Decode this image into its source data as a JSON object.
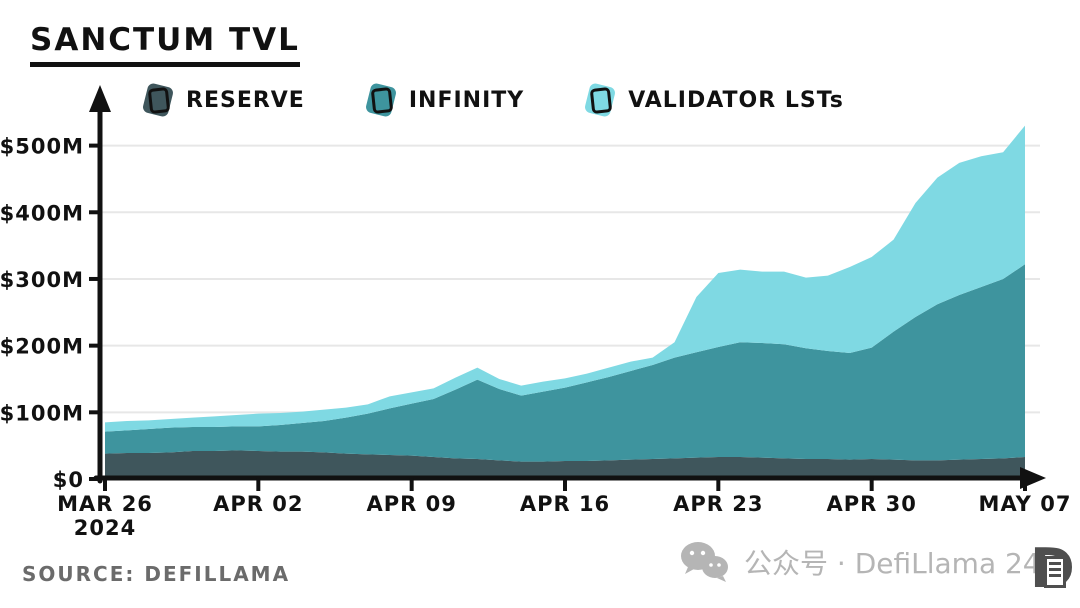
{
  "title": "SANCTUM TVL",
  "source": "SOURCE: DEFILLAMA",
  "watermark": {
    "icon": "wechat-icon",
    "text": "公众号 · DefiLlama 24",
    "seal_letter": "D"
  },
  "chart_data": {
    "type": "area",
    "stacked": true,
    "title": "SANCTUM TVL",
    "xlabel": "",
    "ylabel": "",
    "ylim": [
      0,
      500
    ],
    "grid": true,
    "legend_position": "top",
    "y_ticks": [
      0,
      100,
      200,
      300,
      400,
      500
    ],
    "y_tick_labels": [
      "$0",
      "$100M",
      "$200M",
      "$300M",
      "$400M",
      "$500M"
    ],
    "x_ticks": [
      {
        "index": 0,
        "label": "MAR 26",
        "sublabel": "2024"
      },
      {
        "index": 7,
        "label": "APR 02"
      },
      {
        "index": 14,
        "label": "APR 09"
      },
      {
        "index": 21,
        "label": "APR 16"
      },
      {
        "index": 28,
        "label": "APR 23"
      },
      {
        "index": 35,
        "label": "APR 30"
      },
      {
        "index": 42,
        "label": "MAY 07"
      }
    ],
    "dates": [
      "2024-03-26",
      "2024-03-27",
      "2024-03-28",
      "2024-03-29",
      "2024-03-30",
      "2024-03-31",
      "2024-04-01",
      "2024-04-02",
      "2024-04-03",
      "2024-04-04",
      "2024-04-05",
      "2024-04-06",
      "2024-04-07",
      "2024-04-08",
      "2024-04-09",
      "2024-04-10",
      "2024-04-11",
      "2024-04-12",
      "2024-04-13",
      "2024-04-14",
      "2024-04-15",
      "2024-04-16",
      "2024-04-17",
      "2024-04-18",
      "2024-04-19",
      "2024-04-20",
      "2024-04-21",
      "2024-04-22",
      "2024-04-23",
      "2024-04-24",
      "2024-04-25",
      "2024-04-26",
      "2024-04-27",
      "2024-04-28",
      "2024-04-29",
      "2024-04-30",
      "2024-05-01",
      "2024-05-02",
      "2024-05-03",
      "2024-05-04",
      "2024-05-05",
      "2024-05-06",
      "2024-05-07"
    ],
    "value_unit": "USD millions",
    "series": [
      {
        "name": "RESERVE",
        "color": "#3f565c",
        "values": [
          38,
          39,
          39,
          40,
          42,
          42,
          43,
          42,
          41,
          41,
          40,
          38,
          37,
          36,
          35,
          33,
          31,
          30,
          28,
          26,
          26,
          27,
          27,
          28,
          29,
          30,
          31,
          32,
          33,
          33,
          32,
          31,
          30,
          30,
          29,
          30,
          29,
          28,
          28,
          29,
          30,
          31,
          33
        ]
      },
      {
        "name": "INFINITY",
        "color": "#3e949e",
        "values": [
          33,
          34,
          36,
          37,
          36,
          36,
          36,
          37,
          40,
          43,
          47,
          54,
          61,
          70,
          78,
          87,
          103,
          119,
          107,
          99,
          105,
          110,
          118,
          125,
          133,
          141,
          151,
          158,
          165,
          172,
          172,
          171,
          166,
          162,
          160,
          167,
          192,
          215,
          234,
          247,
          258,
          269,
          289
        ]
      },
      {
        "name": "VALIDATOR LSTs",
        "color": "#7fd9e3",
        "values": [
          14,
          14,
          13,
          13,
          14,
          16,
          17,
          19,
          18,
          17,
          17,
          15,
          14,
          18,
          17,
          16,
          18,
          18,
          15,
          15,
          15,
          14,
          13,
          14,
          14,
          11,
          23,
          83,
          111,
          109,
          107,
          109,
          106,
          113,
          129,
          136,
          138,
          171,
          190,
          198,
          196,
          190,
          208
        ]
      }
    ],
    "colors": {
      "axis": "#111111",
      "gridline": "#e7e7e7",
      "tick_label": "#111111"
    }
  }
}
